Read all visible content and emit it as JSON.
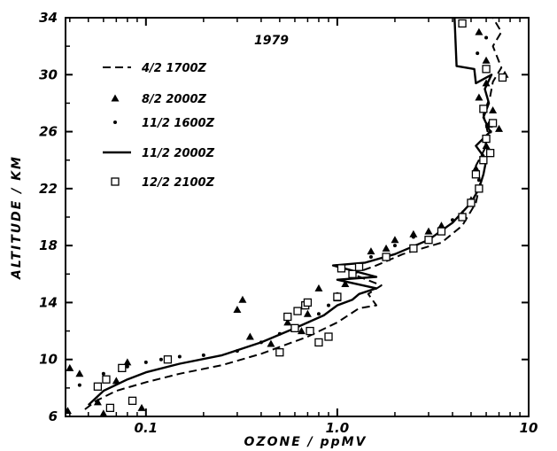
{
  "chart_data": {
    "type": "scatter",
    "annotation": "1979",
    "xlabel": "OZONE / ppMV",
    "ylabel": "ALTITUDE / KM",
    "xscale": "log",
    "xlim": [
      0.038,
      10
    ],
    "ylim": [
      6,
      34
    ],
    "x_ticks": [
      0.1,
      1.0,
      10
    ],
    "x_tick_labels": [
      "0.1",
      "1.0",
      "10"
    ],
    "y_ticks": [
      6,
      10,
      14,
      18,
      22,
      26,
      30,
      34
    ],
    "y_tick_labels": [
      "6",
      "10",
      "14",
      "18",
      "22",
      "26",
      "30",
      "34"
    ],
    "legend_position": "upper-left",
    "grid": false,
    "series": [
      {
        "name": "4/2 1700Z",
        "style": "dashed",
        "x": [
          0.048,
          0.055,
          0.07,
          0.1,
          0.15,
          0.25,
          0.4,
          0.7,
          1.0,
          1.3,
          1.6,
          1.45,
          1.7,
          1.2,
          1.6,
          2.2,
          3.5,
          4.5,
          5.3,
          5.6,
          5.3,
          5.9,
          6.1,
          5.8,
          6.3,
          6.5,
          7.2,
          6.5,
          7.2,
          6.5
        ],
        "y": [
          6.5,
          7.1,
          7.8,
          8.4,
          9.0,
          9.6,
          10.4,
          11.6,
          12.6,
          13.6,
          13.8,
          14.6,
          15.2,
          16.0,
          16.6,
          17.4,
          18.2,
          19.4,
          21.0,
          22.5,
          23.6,
          24.8,
          26.0,
          27.2,
          28.5,
          29.5,
          30.5,
          32.0,
          33.0,
          34.0
        ]
      },
      {
        "name": "8/2 2000Z",
        "style": "triangle",
        "x": [
          0.039,
          0.04,
          0.045,
          0.056,
          0.06,
          0.07,
          0.08,
          0.095,
          0.3,
          0.32,
          0.35,
          0.45,
          0.55,
          0.65,
          0.7,
          0.8,
          1.0,
          1.1,
          1.2,
          1.3,
          1.5,
          1.8,
          2.0,
          2.5,
          3.0,
          3.5,
          4.5,
          5.0,
          5.5,
          5.3,
          5.8,
          6.0,
          6.2,
          6.5,
          5.5,
          6.0,
          7.0,
          7.5,
          6.0,
          5.5
        ],
        "y": [
          6.4,
          9.4,
          9.0,
          7.0,
          6.2,
          8.5,
          9.8,
          6.6,
          13.5,
          14.2,
          11.6,
          11.1,
          12.6,
          12.0,
          13.2,
          15.0,
          14.3,
          15.3,
          16.0,
          16.5,
          17.6,
          17.8,
          18.4,
          18.8,
          19.0,
          19.4,
          20.2,
          21.2,
          22.0,
          23.4,
          24.2,
          25.0,
          26.5,
          27.5,
          28.4,
          29.4,
          26.2,
          30.0,
          31.0,
          33.0
        ]
      },
      {
        "name": "11/2 1600Z",
        "style": "dot",
        "x": [
          0.045,
          0.06,
          0.08,
          0.1,
          0.12,
          0.15,
          0.2,
          0.3,
          0.4,
          0.5,
          0.6,
          0.8,
          0.9,
          1.0,
          1.2,
          1.5,
          2.0,
          2.5,
          3.0,
          4.0,
          5.0,
          5.5,
          5.8,
          6.0,
          6.3,
          5.4,
          6.0
        ],
        "y": [
          8.2,
          9.0,
          9.5,
          9.8,
          10.0,
          10.2,
          10.3,
          10.6,
          11.2,
          11.8,
          12.3,
          13.2,
          13.8,
          14.6,
          16.0,
          17.2,
          18.0,
          18.6,
          19.0,
          19.8,
          21.0,
          22.6,
          24.0,
          25.0,
          26.0,
          31.5,
          32.6
        ]
      },
      {
        "name": "11/2 2000Z",
        "style": "solid",
        "x": [
          0.05,
          0.06,
          0.08,
          0.1,
          0.15,
          0.25,
          0.4,
          0.6,
          0.85,
          1.0,
          1.2,
          1.3,
          1.6,
          1.0,
          1.6,
          0.95,
          1.4,
          2.0,
          3.0,
          4.0,
          5.0,
          5.5,
          5.8,
          6.0,
          5.3,
          6.3,
          5.8,
          6.2,
          5.9,
          6.4,
          5.3,
          5.2,
          4.2,
          4.1
        ],
        "y": [
          6.8,
          7.8,
          8.6,
          9.1,
          9.7,
          10.3,
          11.2,
          12.2,
          13.1,
          13.8,
          14.2,
          14.6,
          15.0,
          15.6,
          15.8,
          16.6,
          16.8,
          17.4,
          18.4,
          19.6,
          21.0,
          22.0,
          23.0,
          24.0,
          25.0,
          26.0,
          27.0,
          28.0,
          29.0,
          30.0,
          29.4,
          30.4,
          30.6,
          34.0
        ]
      },
      {
        "name": "12/2 2100Z",
        "style": "square",
        "x": [
          0.056,
          0.062,
          0.065,
          0.075,
          0.085,
          0.13,
          0.5,
          0.55,
          0.6,
          0.62,
          0.68,
          0.7,
          0.72,
          0.8,
          0.9,
          1.0,
          1.05,
          1.2,
          1.3,
          1.8,
          2.5,
          3.0,
          3.5,
          4.5,
          5.0,
          5.5,
          5.3,
          5.8,
          6.3,
          6.0,
          6.5,
          5.8,
          7.3,
          6.0,
          4.5
        ],
        "y": [
          8.1,
          8.6,
          6.6,
          9.4,
          7.1,
          10.0,
          10.5,
          13.0,
          12.2,
          13.4,
          13.8,
          14.0,
          12.0,
          11.2,
          11.6,
          14.4,
          16.4,
          16.0,
          16.5,
          17.2,
          17.8,
          18.4,
          19.0,
          20.0,
          21.0,
          22.0,
          23.0,
          24.0,
          24.5,
          25.5,
          26.6,
          27.6,
          29.8,
          30.4,
          33.6
        ]
      }
    ]
  }
}
